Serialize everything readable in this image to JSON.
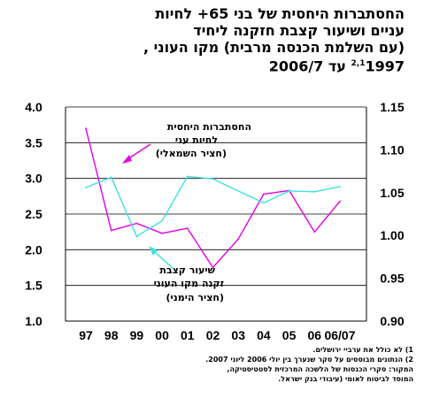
{
  "title_lines": [
    "החסתברות היחסית של בני 65+ לחיות",
    "עניים ושיעור קצבת חזקנה ליחיד",
    "(עם השלמת הכנסה מרבית) מקו העוני ,",
    "1997 עד 2006/7"
  ],
  "title_superscript": "2,1",
  "chart_data": {
    "type": "line",
    "x": [
      "97",
      "98",
      "99",
      "00",
      "01",
      "02",
      "03",
      "04",
      "05",
      "06",
      "06/07"
    ],
    "y_left": {
      "min": 1.0,
      "max": 4.0,
      "ticks": [
        "1.0",
        "1.5",
        "2.0",
        "2.5",
        "3.0",
        "3.5",
        "4.0"
      ]
    },
    "y_right": {
      "min": 0.9,
      "max": 1.15,
      "ticks": [
        "0.90",
        "0.95",
        "1.00",
        "1.05",
        "1.10",
        "1.15"
      ]
    },
    "gridlines": true,
    "series": [
      {
        "name": "החסתברות היחסית לחיות עני (חציר השמאלי)",
        "axis": "left",
        "color": "#e400e4",
        "values": [
          3.7,
          2.27,
          2.37,
          2.23,
          2.3,
          1.75,
          2.15,
          2.78,
          2.83,
          2.25,
          2.68
        ]
      },
      {
        "name": "שיעור קצבת זקנה מקו העוני (חציר הימני)",
        "axis": "right",
        "color": "#3fe0e0",
        "values": [
          1.056,
          1.068,
          0.999,
          1.017,
          1.069,
          1.066,
          1.052,
          1.038,
          1.052,
          1.051,
          1.057
        ]
      }
    ],
    "annotations": [
      {
        "lines": [
          "החסתברות היחסית",
          "לחיות עני",
          "(חציר השמאלי)"
        ],
        "points_to_series": 0
      },
      {
        "lines": [
          "שיעור קצבת",
          "זקנה מקו העוני",
          "(חציר הימני)"
        ],
        "points_to_series": 1
      }
    ]
  },
  "footnotes": [
    "1) לא כולל את ערביי ירושלים.",
    "2) הנתונים מבוססים על סקר שנערך בין יולי 2006 ליוני 2007.",
    "המקור: סקרי הכנסות של הלשכה המרכזית לסטטיסטיקה,",
    "המוסד לביטוח לאומי (עיבודי בנק ישראל."
  ],
  "colors": {
    "plot_background": "#ffffff",
    "grid": "#000000",
    "axis": "#000000"
  }
}
